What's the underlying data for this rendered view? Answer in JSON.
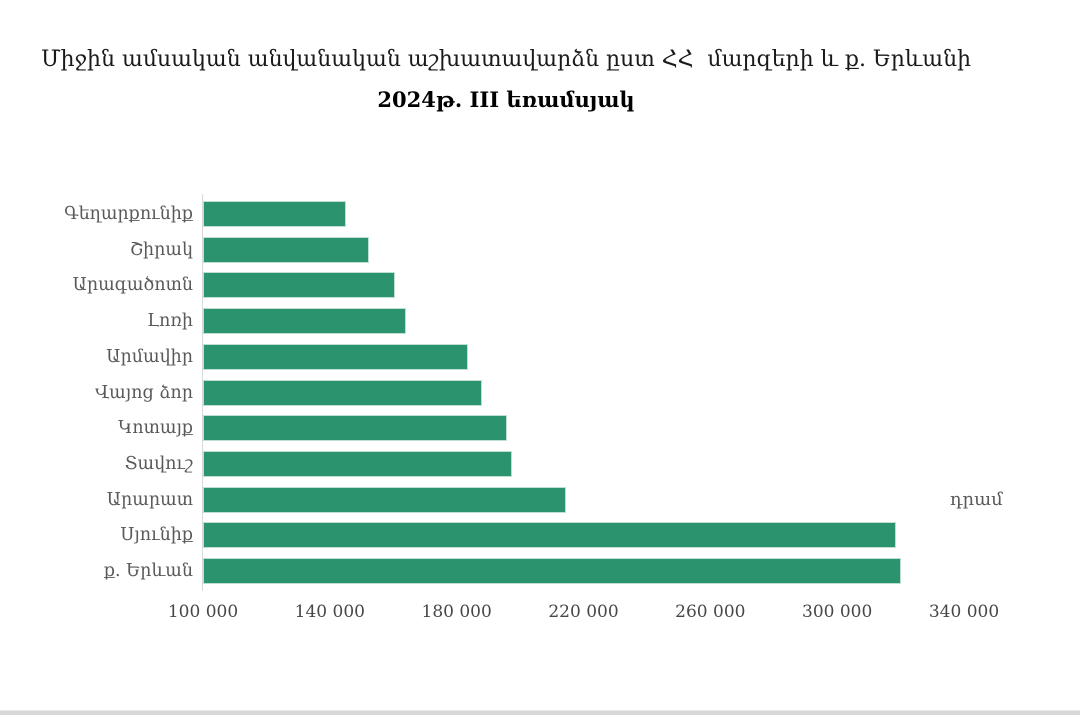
{
  "chart_data": {
    "type": "bar",
    "orientation": "horizontal",
    "title": "Միջին ամսական անվանական աշխատավարձն ըստ ՀՀ  մարզերի և ք. Երևանի",
    "subtitle": "2024թ. III եռամսյակ",
    "unit_label": "դրամ",
    "categories": [
      "Գեղարքունիք",
      "Շիրակ",
      "Արագածոտն",
      "Լոռի",
      "Արմավիր",
      "Վայոց ձոր",
      "Կոտայք",
      "Տավուշ",
      "Արարատ",
      "Սյունիք",
      "ք. Երևան"
    ],
    "values": [
      145000,
      152500,
      160500,
      164000,
      183500,
      188000,
      196000,
      197500,
      214500,
      318500,
      320000
    ],
    "xlim": [
      100000,
      340000
    ],
    "x_tick_values": [
      100000,
      140000,
      180000,
      220000,
      260000,
      300000,
      340000
    ],
    "x_tick_labels": [
      "100 000",
      "140 000",
      "180 000",
      "220 000",
      "260 000",
      "300 000",
      "340 000"
    ],
    "bar_color": "#2b946e",
    "axis_line_color": "#d9d9d9",
    "grid": "off",
    "legend": "none"
  }
}
